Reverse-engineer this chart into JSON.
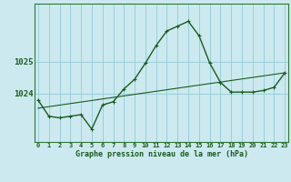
{
  "title": "Graphe pression niveau de la mer (hPa)",
  "background_color": "#cce9f0",
  "grid_color": "#9acfdb",
  "line_color": "#1a5c1a",
  "spine_color": "#2d7a2d",
  "x_labels": [
    "0",
    "1",
    "2",
    "3",
    "4",
    "5",
    "6",
    "7",
    "8",
    "9",
    "10",
    "11",
    "12",
    "13",
    "14",
    "15",
    "16",
    "17",
    "18",
    "19",
    "20",
    "21",
    "22",
    "23"
  ],
  "main_series": [
    1023.8,
    1023.3,
    1023.25,
    1023.3,
    1023.35,
    1022.9,
    1023.65,
    1023.75,
    1024.15,
    1024.45,
    1024.95,
    1025.5,
    1025.95,
    1026.1,
    1026.25,
    1025.8,
    1024.95,
    1024.35,
    1024.05,
    1024.05,
    1024.05,
    1024.1,
    1024.2,
    1024.65
  ],
  "trend_series_x": [
    0,
    23
  ],
  "trend_series_y": [
    1023.55,
    1024.65
  ],
  "yticks": [
    1024,
    1025
  ],
  "ylim": [
    1022.5,
    1026.8
  ],
  "xlim": [
    -0.3,
    23.3
  ]
}
